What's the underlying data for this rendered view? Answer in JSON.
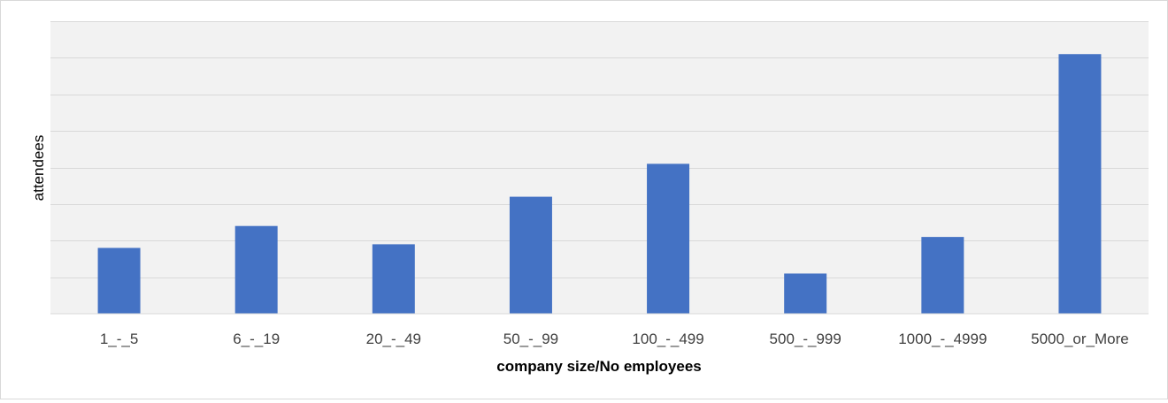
{
  "chart_data": {
    "type": "bar",
    "categories": [
      "1_-_5",
      "6_-_19",
      "20_-_49",
      "50_-_99",
      "100_-_499",
      "500_-_999",
      "1000_-_4999",
      "5000_or_More"
    ],
    "values": [
      1.8,
      2.4,
      1.9,
      3.2,
      4.1,
      1.1,
      2.1,
      7.1
    ],
    "title": "",
    "xlabel": "company size/No employees",
    "ylabel": "attendees",
    "ylim": [
      0,
      8
    ],
    "grid": true,
    "gridline_count": 8,
    "y_tick_labels_shown": false,
    "legend": "none",
    "colors": {
      "bar": "#4472C4",
      "plot_background": "#F2F2F2",
      "gridline": "#D9D9D9",
      "baseline": "#D9D9D9"
    }
  }
}
